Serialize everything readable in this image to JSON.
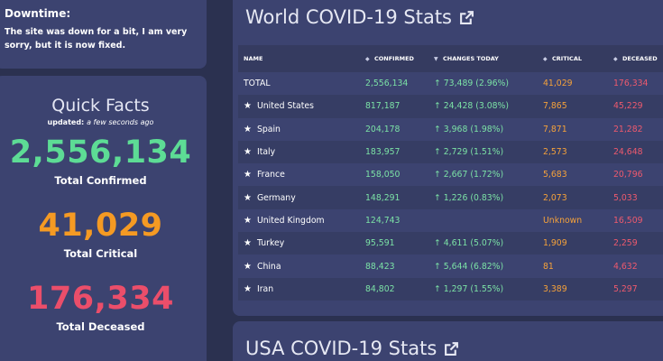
{
  "downtime": {
    "heading": "Downtime:",
    "text": "The site was down for a bit, I am very sorry, but it is now fixed."
  },
  "quick": {
    "title": "Quick Facts",
    "updated_prefix": "updated:",
    "updated_value": "a few seconds ago",
    "confirmed": "2,556,134",
    "confirmed_label": "Total Confirmed",
    "critical": "41,029",
    "critical_label": "Total Critical",
    "deceased": "176,334",
    "deceased_label": "Total Deceased",
    "colors": {
      "confirmed": "#5ddc95",
      "critical": "#f59a23",
      "deceased": "#eb4e6a"
    }
  },
  "world": {
    "title": "World COVID-19 Stats",
    "columns": {
      "name": "NAME",
      "confirmed": "CONFIRMED",
      "changes": "CHANGES TODAY",
      "critical": "CRITICAL",
      "deceased": "DECEASED"
    },
    "total": {
      "name": "TOTAL",
      "confirmed": "2,556,134",
      "changes": "↑ 73,489 (2.96%)",
      "critical": "41,029",
      "deceased": "176,334"
    },
    "rows": [
      {
        "name": "United States",
        "confirmed": "817,187",
        "changes": "↑ 24,428 (3.08%)",
        "critical": "7,865",
        "deceased": "45,229"
      },
      {
        "name": "Spain",
        "confirmed": "204,178",
        "changes": "↑ 3,968 (1.98%)",
        "critical": "7,871",
        "deceased": "21,282"
      },
      {
        "name": "Italy",
        "confirmed": "183,957",
        "changes": "↑ 2,729 (1.51%)",
        "critical": "2,573",
        "deceased": "24,648"
      },
      {
        "name": "France",
        "confirmed": "158,050",
        "changes": "↑ 2,667 (1.72%)",
        "critical": "5,683",
        "deceased": "20,796"
      },
      {
        "name": "Germany",
        "confirmed": "148,291",
        "changes": "↑ 1,226 (0.83%)",
        "critical": "2,073",
        "deceased": "5,033"
      },
      {
        "name": "United Kingdom",
        "confirmed": "124,743",
        "changes": "",
        "critical": "Unknown",
        "deceased": "16,509"
      },
      {
        "name": "Turkey",
        "confirmed": "95,591",
        "changes": "↑ 4,611 (5.07%)",
        "critical": "1,909",
        "deceased": "2,259"
      },
      {
        "name": "China",
        "confirmed": "88,423",
        "changes": "↑ 5,644 (6.82%)",
        "critical": "81",
        "deceased": "4,632"
      },
      {
        "name": "Iran",
        "confirmed": "84,802",
        "changes": "↑ 1,297 (1.55%)",
        "critical": "3,389",
        "deceased": "5,297"
      }
    ]
  },
  "usa": {
    "title": "USA COVID-19 Stats"
  }
}
